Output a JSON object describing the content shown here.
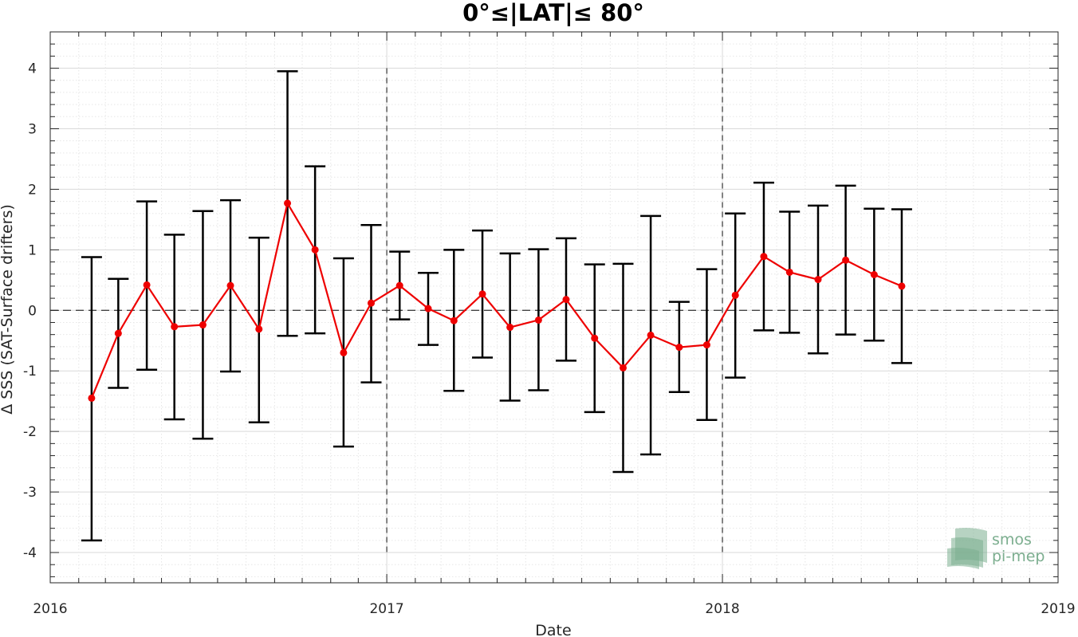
{
  "chart_data": {
    "type": "line",
    "title": "0°≤|LAT|≤ 80°",
    "xlabel": "Date",
    "ylabel": "Δ SSS (SAT-Surface drifters)",
    "xlim": [
      "2016-01-01",
      "2019-01-01"
    ],
    "ylim": [
      -4.5,
      4.6
    ],
    "x_ticks": [
      "2016-01-01",
      "2017-01-01",
      "2018-01-01",
      "2019-01-01"
    ],
    "x_tick_labels": [
      "2016",
      "2017",
      "2018",
      "2019"
    ],
    "y_ticks": [
      -4,
      -3,
      -2,
      -1,
      0,
      1,
      2,
      3,
      4
    ],
    "y_tick_labels": [
      "-4",
      "-3",
      "-2",
      "-1",
      "0",
      "1",
      "2",
      "3",
      "4"
    ],
    "grid": true,
    "reference_line_y": 0,
    "year_boundary_lines": [
      "2017-01-01",
      "2018-01-01"
    ],
    "series": [
      {
        "color": "#ee0000",
        "errorbar_color": "#000000",
        "points": [
          {
            "x": "2016-02-15",
            "y": -1.45,
            "low": -3.8,
            "high": 0.88
          },
          {
            "x": "2016-03-15",
            "y": -0.38,
            "low": -1.28,
            "high": 0.52
          },
          {
            "x": "2016-04-15",
            "y": 0.42,
            "low": -0.98,
            "high": 1.8
          },
          {
            "x": "2016-05-15",
            "y": -0.27,
            "low": -1.8,
            "high": 1.25
          },
          {
            "x": "2016-06-15",
            "y": -0.24,
            "low": -2.12,
            "high": 1.64
          },
          {
            "x": "2016-07-15",
            "y": 0.41,
            "low": -1.01,
            "high": 1.82
          },
          {
            "x": "2016-08-15",
            "y": -0.31,
            "low": -1.85,
            "high": 1.2
          },
          {
            "x": "2016-09-15",
            "y": 1.77,
            "low": -0.42,
            "high": 3.95
          },
          {
            "x": "2016-10-15",
            "y": 1.0,
            "low": -0.38,
            "high": 2.38
          },
          {
            "x": "2016-11-15",
            "y": -0.7,
            "low": -2.25,
            "high": 0.86
          },
          {
            "x": "2016-12-15",
            "y": 0.12,
            "low": -1.19,
            "high": 1.41
          },
          {
            "x": "2017-01-15",
            "y": 0.41,
            "low": -0.15,
            "high": 0.97
          },
          {
            "x": "2017-02-15",
            "y": 0.03,
            "low": -0.57,
            "high": 0.62
          },
          {
            "x": "2017-03-15",
            "y": -0.17,
            "low": -1.33,
            "high": 1.0
          },
          {
            "x": "2017-04-15",
            "y": 0.27,
            "low": -0.78,
            "high": 1.32
          },
          {
            "x": "2017-05-15",
            "y": -0.28,
            "low": -1.49,
            "high": 0.94
          },
          {
            "x": "2017-06-15",
            "y": -0.16,
            "low": -1.32,
            "high": 1.01
          },
          {
            "x": "2017-07-15",
            "y": 0.18,
            "low": -0.83,
            "high": 1.19
          },
          {
            "x": "2017-08-15",
            "y": -0.46,
            "low": -1.68,
            "high": 0.76
          },
          {
            "x": "2017-09-15",
            "y": -0.95,
            "low": -2.67,
            "high": 0.77
          },
          {
            "x": "2017-10-15",
            "y": -0.41,
            "low": -2.38,
            "high": 1.56
          },
          {
            "x": "2017-11-15",
            "y": -0.61,
            "low": -1.35,
            "high": 0.14
          },
          {
            "x": "2017-12-15",
            "y": -0.57,
            "low": -1.81,
            "high": 0.68
          },
          {
            "x": "2018-01-15",
            "y": 0.25,
            "low": -1.11,
            "high": 1.6
          },
          {
            "x": "2018-02-15",
            "y": 0.89,
            "low": -0.33,
            "high": 2.11
          },
          {
            "x": "2018-03-15",
            "y": 0.63,
            "low": -0.37,
            "high": 1.63
          },
          {
            "x": "2018-04-15",
            "y": 0.51,
            "low": -0.71,
            "high": 1.73
          },
          {
            "x": "2018-05-15",
            "y": 0.83,
            "low": -0.4,
            "high": 2.06
          },
          {
            "x": "2018-06-15",
            "y": 0.59,
            "low": -0.5,
            "high": 1.68
          },
          {
            "x": "2018-07-15",
            "y": 0.4,
            "low": -0.87,
            "high": 1.67
          }
        ]
      }
    ]
  },
  "logo": {
    "line1": "smos",
    "line2": "pi-mep",
    "color": "#7cae8f"
  }
}
